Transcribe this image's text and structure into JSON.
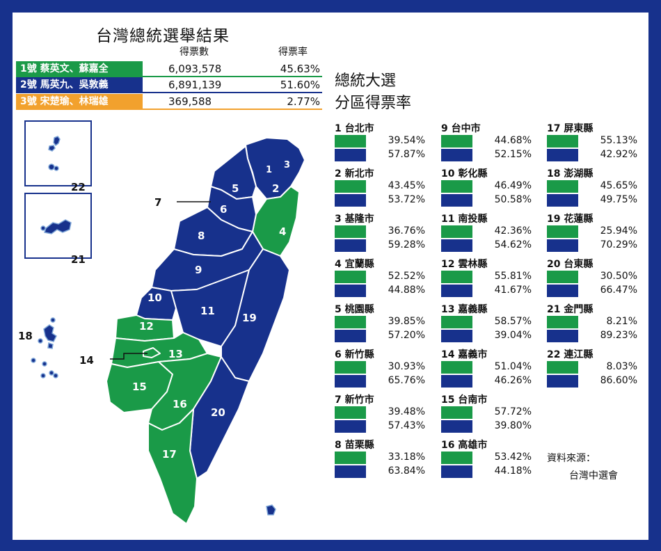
{
  "title": "台灣總統選舉結果",
  "columns": {
    "votes": "得票數",
    "rate": "得票率"
  },
  "colors": {
    "green": "#1a9a48",
    "blue": "#17318c",
    "orange": "#f2a12d"
  },
  "candidates": [
    {
      "label": "1號 蔡英文、蘇嘉全",
      "votes": "6,093,578",
      "rate": "45.63%",
      "color": "#1a9a48"
    },
    {
      "label": "2號 馬英九、吳敦義",
      "votes": "6,891,139",
      "rate": "51.60%",
      "color": "#17318c"
    },
    {
      "label": "3號 宋楚瑜、林瑞雄",
      "votes": "369,588",
      "rate": "2.77%",
      "color": "#f2a12d"
    }
  ],
  "region_title": {
    "line1": "總統大選",
    "line2": "分區得票率"
  },
  "districts": [
    {
      "name": "1 台北市",
      "green": "39.54%",
      "blue": "57.87%"
    },
    {
      "name": "2 新北市",
      "green": "43.45%",
      "blue": "53.72%"
    },
    {
      "name": "3 基隆市",
      "green": "36.76%",
      "blue": "59.28%"
    },
    {
      "name": "4 宜蘭縣",
      "green": "52.52%",
      "blue": "44.88%"
    },
    {
      "name": "5 桃園縣",
      "green": "39.85%",
      "blue": "57.20%"
    },
    {
      "name": "6 新竹縣",
      "green": "30.93%",
      "blue": "65.76%"
    },
    {
      "name": "7 新竹市",
      "green": "39.48%",
      "blue": "57.43%"
    },
    {
      "name": "8 苗栗縣",
      "green": "33.18%",
      "blue": "63.84%"
    },
    {
      "name": "9 台中市",
      "green": "44.68%",
      "blue": "52.15%"
    },
    {
      "name": "10 彰化縣",
      "green": "46.49%",
      "blue": "50.58%"
    },
    {
      "name": "11 南投縣",
      "green": "42.36%",
      "blue": "54.62%"
    },
    {
      "name": "12 雲林縣",
      "green": "55.81%",
      "blue": "41.67%"
    },
    {
      "name": "13 嘉義縣",
      "green": "58.57%",
      "blue": "39.04%"
    },
    {
      "name": "14 嘉義市",
      "green": "51.04%",
      "blue": "46.26%"
    },
    {
      "name": "15 台南市",
      "green": "57.72%",
      "blue": "39.80%"
    },
    {
      "name": "16 高雄市",
      "green": "53.42%",
      "blue": "44.18%"
    },
    {
      "name": "17 屏東縣",
      "green": "55.13%",
      "blue": "42.92%"
    },
    {
      "name": "18 澎湖縣",
      "green": "45.65%",
      "blue": "49.75%"
    },
    {
      "name": "19 花蓮縣",
      "green": "25.94%",
      "blue": "70.29%"
    },
    {
      "name": "20 台東縣",
      "green": "30.50%",
      "blue": "66.47%"
    },
    {
      "name": "21 金門縣",
      "green": "8.21%",
      "blue": "89.23%"
    },
    {
      "name": "22 連江縣",
      "green": "8.03%",
      "blue": "86.60%"
    }
  ],
  "map_labels": {
    "d1": "1",
    "d2": "2",
    "d3": "3",
    "d4": "4",
    "d5": "5",
    "d6": "6",
    "d7": "7",
    "d8": "8",
    "d9": "9",
    "d10": "10",
    "d11": "11",
    "d12": "12",
    "d13": "13",
    "d14": "14",
    "d15": "15",
    "d16": "16",
    "d17": "17",
    "d18": "18",
    "d19": "19",
    "d20": "20",
    "d21": "21",
    "d22": "22"
  },
  "source": {
    "line1": "資料來源：",
    "line2": "台灣中選會"
  }
}
